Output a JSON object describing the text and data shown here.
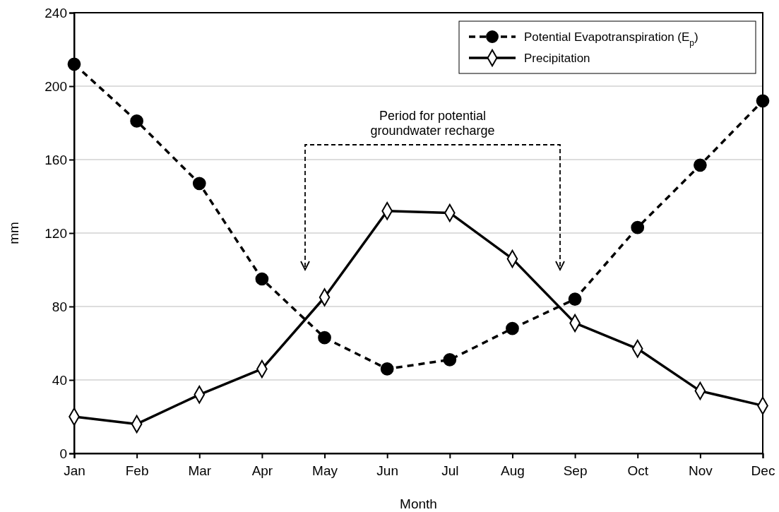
{
  "chart_data": {
    "type": "line",
    "xlabel": "Month",
    "ylabel": "mm",
    "categories": [
      "Jan",
      "Feb",
      "Mar",
      "Apr",
      "May",
      "Jun",
      "Jul",
      "Aug",
      "Sep",
      "Oct",
      "Nov",
      "Dec"
    ],
    "series": [
      {
        "name": "Potential Evapotranspiration (E$_{p}$)",
        "color": "#000000",
        "marker": "circle",
        "line_style": "dashed",
        "values": [
          212,
          181,
          147,
          95,
          63,
          46,
          51,
          68,
          84,
          123,
          157,
          192
        ]
      },
      {
        "name": "Precipitation",
        "color": "#000000",
        "marker": "diamond",
        "line_style": "solid",
        "values": [
          20,
          16,
          32,
          46,
          85,
          132,
          131,
          106,
          71,
          57,
          34,
          26
        ]
      }
    ],
    "ylim": [
      0,
      240
    ],
    "yticks": [
      0,
      40,
      80,
      120,
      160,
      200,
      240
    ],
    "grid": "y",
    "legend": "top right",
    "annotations": [
      "Period for potential groundwater recharge"
    ]
  }
}
